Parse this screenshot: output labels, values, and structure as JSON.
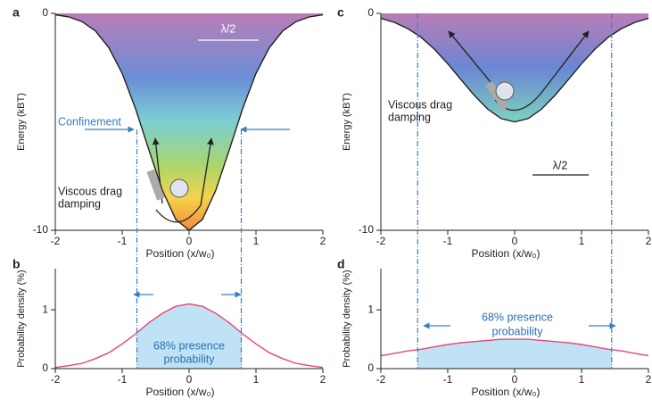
{
  "chart_data": [
    {
      "type": "line",
      "label": "a",
      "xlabel": "Position (x/w₀)",
      "ylabel": "Energy (kBT)",
      "x": [
        -2,
        -1.8,
        -1.6,
        -1.4,
        -1.2,
        -1,
        -0.8,
        -0.6,
        -0.4,
        -0.2,
        0,
        0.2,
        0.4,
        0.6,
        0.8,
        1,
        1.2,
        1.4,
        1.6,
        1.8,
        2
      ],
      "values": [
        -0.06,
        -0.16,
        -0.38,
        -0.81,
        -1.58,
        -2.77,
        -4.4,
        -6.3,
        -8.15,
        -9.5,
        -10,
        -9.5,
        -8.15,
        -6.3,
        -4.4,
        -2.77,
        -1.58,
        -0.81,
        -0.38,
        -0.16,
        -0.06
      ],
      "color": "#222222",
      "xlim": [
        -2,
        2
      ],
      "ylim": [
        -10,
        0
      ],
      "xticks": [
        -2,
        -1,
        0,
        1,
        2
      ],
      "yticks": [
        -10,
        0
      ],
      "vlines": [
        -0.78,
        0.78
      ],
      "annotations": [
        "λ/2",
        "Confinement",
        "Viscous drag",
        "damping"
      ]
    },
    {
      "type": "line",
      "label": "b",
      "xlabel": "Position (x/w₀)",
      "ylabel": "Probability density (%)",
      "x": [
        -2,
        -1.8,
        -1.6,
        -1.4,
        -1.2,
        -1,
        -0.8,
        -0.6,
        -0.4,
        -0.2,
        0,
        0.2,
        0.4,
        0.6,
        0.8,
        1,
        1.2,
        1.4,
        1.6,
        1.8,
        2
      ],
      "values": [
        0.02,
        0.05,
        0.09,
        0.17,
        0.27,
        0.42,
        0.59,
        0.78,
        0.94,
        1.06,
        1.1,
        1.06,
        0.94,
        0.78,
        0.59,
        0.42,
        0.27,
        0.17,
        0.09,
        0.05,
        0.02
      ],
      "color": "#e8457a",
      "xlim": [
        -2,
        2
      ],
      "ylim": [
        0,
        1.7
      ],
      "xticks": [
        -2,
        -1,
        0,
        1,
        2
      ],
      "yticks": [
        0,
        1
      ],
      "vlines": [
        -0.78,
        0.78
      ],
      "annotations": [
        "68% presence",
        "probability"
      ]
    },
    {
      "type": "line",
      "label": "c",
      "xlabel": "Position (x/w₀)",
      "ylabel": "Energy (kBT)",
      "x": [
        -2,
        -1.8,
        -1.6,
        -1.4,
        -1.2,
        -1,
        -0.8,
        -0.6,
        -0.4,
        -0.2,
        0,
        0.2,
        0.4,
        0.6,
        0.8,
        1,
        1.2,
        1.4,
        1.6,
        1.8,
        2
      ],
      "values": [
        -0.23,
        -0.41,
        -0.7,
        -1.1,
        -1.65,
        -2.32,
        -3.06,
        -3.79,
        -4.42,
        -4.85,
        -5,
        -4.85,
        -4.42,
        -3.79,
        -3.06,
        -2.32,
        -1.65,
        -1.1,
        -0.7,
        -0.41,
        -0.23
      ],
      "color": "#222222",
      "xlim": [
        -2,
        2
      ],
      "ylim": [
        -10,
        0
      ],
      "xticks": [
        -2,
        -1,
        0,
        1,
        2
      ],
      "yticks": [
        -10,
        0
      ],
      "vlines": [
        -1.45,
        1.45
      ],
      "annotations": [
        "Viscous drag",
        "damping",
        "λ/2"
      ]
    },
    {
      "type": "line",
      "label": "d",
      "xlabel": "Position (x/w₀)",
      "ylabel": "Probability density (%)",
      "x": [
        -2,
        -1.8,
        -1.6,
        -1.4,
        -1.2,
        -1,
        -0.8,
        -0.6,
        -0.4,
        -0.2,
        0,
        0.2,
        0.4,
        0.6,
        0.8,
        1,
        1.2,
        1.4,
        1.6,
        1.8,
        2
      ],
      "values": [
        0.22,
        0.26,
        0.3,
        0.33,
        0.37,
        0.41,
        0.44,
        0.46,
        0.48,
        0.5,
        0.5,
        0.5,
        0.48,
        0.46,
        0.44,
        0.41,
        0.37,
        0.33,
        0.3,
        0.26,
        0.22
      ],
      "color": "#e8457a",
      "xlim": [
        -2,
        2
      ],
      "ylim": [
        0,
        1.7
      ],
      "xticks": [
        -2,
        -1,
        0,
        1,
        2
      ],
      "yticks": [
        0,
        1
      ],
      "vlines": [
        -1.45,
        1.45
      ],
      "annotations": [
        "68% presence",
        "probability"
      ]
    }
  ]
}
